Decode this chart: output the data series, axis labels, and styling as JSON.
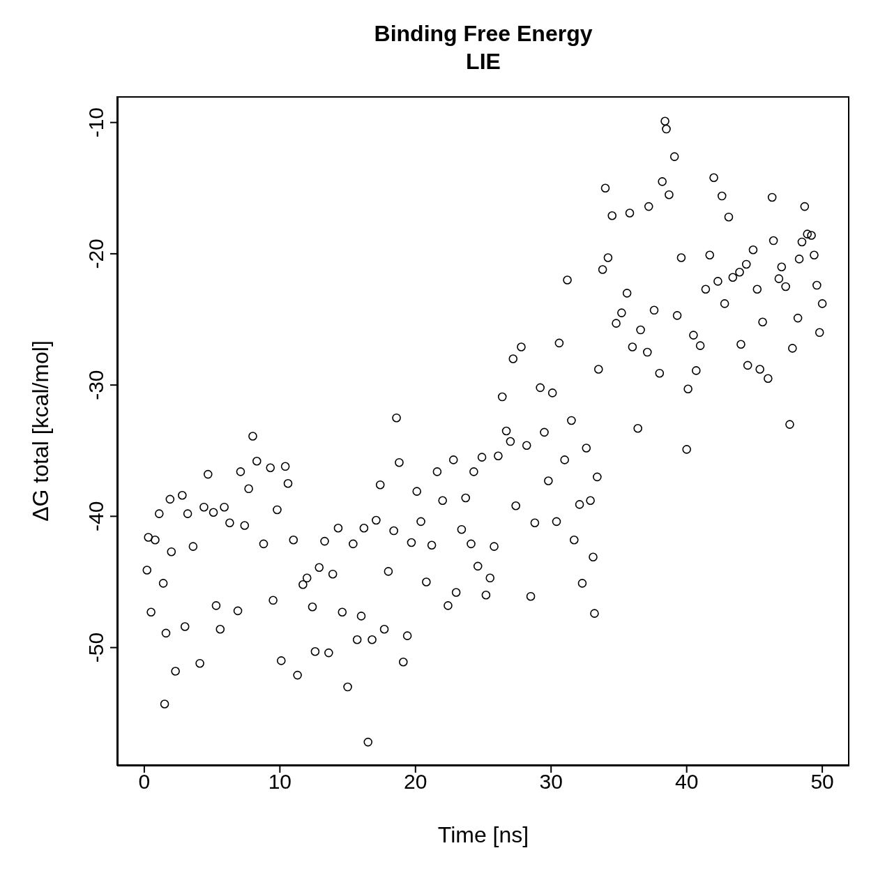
{
  "chart_data": {
    "type": "scatter",
    "title": "Binding Free Energy",
    "subtitle": "LIE",
    "xlabel": "Time [ns]",
    "ylabel": "ΔG total [kcal/mol]",
    "xlim": [
      -2,
      52
    ],
    "ylim": [
      -59,
      -8
    ],
    "xticks": [
      0,
      10,
      20,
      30,
      40,
      50
    ],
    "yticks": [
      -50,
      -40,
      -30,
      -20,
      -10
    ],
    "marker": "circle",
    "series": [
      {
        "color": "#000000",
        "x": [
          0.2,
          0.3,
          0.5,
          0.8,
          1.1,
          1.4,
          1.5,
          1.6,
          1.9,
          2.0,
          2.3,
          2.8,
          3.0,
          3.2,
          3.6,
          4.1,
          4.4,
          4.7,
          5.1,
          5.3,
          5.6,
          5.9,
          6.3,
          6.9,
          7.1,
          7.4,
          7.7,
          8.0,
          8.3,
          8.8,
          9.3,
          9.5,
          9.8,
          10.1,
          10.4,
          10.6,
          11.0,
          11.3,
          11.7,
          12.0,
          12.4,
          12.6,
          12.9,
          13.3,
          13.6,
          13.9,
          14.3,
          14.6,
          15.0,
          15.4,
          15.7,
          16.0,
          16.2,
          16.5,
          16.8,
          17.1,
          17.4,
          17.7,
          18.0,
          18.4,
          18.6,
          18.8,
          19.1,
          19.4,
          19.7,
          20.1,
          20.4,
          20.8,
          21.2,
          21.6,
          22.0,
          22.4,
          22.8,
          23.0,
          23.4,
          23.7,
          24.1,
          24.3,
          24.6,
          24.9,
          25.2,
          25.5,
          25.8,
          26.1,
          26.4,
          26.7,
          27.0,
          27.2,
          27.4,
          27.8,
          28.2,
          28.5,
          28.8,
          29.2,
          29.5,
          29.8,
          30.1,
          30.4,
          30.6,
          31.0,
          31.2,
          31.5,
          31.7,
          32.1,
          32.3,
          32.6,
          32.9,
          33.1,
          33.2,
          33.4,
          33.5,
          33.8,
          34.0,
          34.2,
          34.5,
          34.8,
          35.2,
          35.6,
          35.8,
          36.0,
          36.4,
          36.6,
          37.1,
          37.2,
          37.6,
          38.0,
          38.2,
          38.4,
          38.5,
          38.7,
          39.1,
          39.3,
          39.6,
          40.0,
          40.1,
          40.5,
          40.7,
          41.0,
          41.4,
          41.7,
          42.0,
          42.3,
          42.6,
          42.8,
          43.1,
          43.4,
          43.9,
          44.0,
          44.4,
          44.5,
          44.9,
          45.2,
          45.4,
          45.6,
          46.0,
          46.3,
          46.4,
          46.8,
          47.0,
          47.3,
          47.6,
          47.8,
          48.2,
          48.3,
          48.5,
          48.7,
          48.9,
          49.2,
          49.4,
          49.6,
          49.8,
          50.0
        ],
        "values": [
          -44.1,
          -41.6,
          -47.3,
          -41.8,
          -39.8,
          -45.1,
          -54.3,
          -48.9,
          -38.7,
          -42.7,
          -51.8,
          -38.4,
          -48.4,
          -39.8,
          -42.3,
          -51.2,
          -39.3,
          -36.8,
          -39.7,
          -46.8,
          -48.6,
          -39.3,
          -40.5,
          -47.2,
          -36.6,
          -40.7,
          -37.9,
          -33.9,
          -35.8,
          -42.1,
          -36.3,
          -46.4,
          -39.5,
          -51.0,
          -36.2,
          -37.5,
          -41.8,
          -52.1,
          -45.2,
          -44.7,
          -46.9,
          -50.3,
          -43.9,
          -41.9,
          -50.4,
          -44.4,
          -40.9,
          -47.3,
          -53.0,
          -42.1,
          -49.4,
          -47.6,
          -40.9,
          -57.2,
          -49.4,
          -40.3,
          -37.6,
          -48.6,
          -44.2,
          -41.1,
          -32.5,
          -35.9,
          -51.1,
          -49.1,
          -42.0,
          -38.1,
          -40.4,
          -45.0,
          -42.2,
          -36.6,
          -38.8,
          -46.8,
          -35.7,
          -45.8,
          -41.0,
          -38.6,
          -42.1,
          -36.6,
          -43.8,
          -35.5,
          -46.0,
          -44.7,
          -42.3,
          -35.4,
          -30.9,
          -33.5,
          -34.3,
          -28.0,
          -39.2,
          -27.1,
          -34.6,
          -46.1,
          -40.5,
          -30.2,
          -33.6,
          -37.3,
          -30.6,
          -40.4,
          -26.8,
          -35.7,
          -22.0,
          -32.7,
          -41.8,
          -39.1,
          -45.1,
          -34.8,
          -38.8,
          -43.1,
          -47.4,
          -37.0,
          -28.8,
          -21.2,
          -15.0,
          -20.3,
          -17.1,
          -25.3,
          -24.5,
          -23.0,
          -16.9,
          -27.1,
          -33.3,
          -25.8,
          -27.5,
          -16.4,
          -24.3,
          -29.1,
          -14.5,
          -9.9,
          -10.5,
          -15.5,
          -12.6,
          -24.7,
          -20.3,
          -34.9,
          -30.3,
          -26.2,
          -28.9,
          -27.0,
          -22.7,
          -20.1,
          -14.2,
          -22.1,
          -15.6,
          -23.8,
          -17.2,
          -21.8,
          -21.4,
          -26.9,
          -20.8,
          -28.5,
          -19.7,
          -22.7,
          -28.8,
          -25.2,
          -29.5,
          -15.7,
          -19.0,
          -21.9,
          -21.0,
          -22.5,
          -33.0,
          -27.2,
          -24.9,
          -20.4,
          -19.1,
          -16.4,
          -18.5,
          -18.6,
          -20.1,
          -22.4,
          -26.0,
          -23.8
        ]
      }
    ]
  }
}
